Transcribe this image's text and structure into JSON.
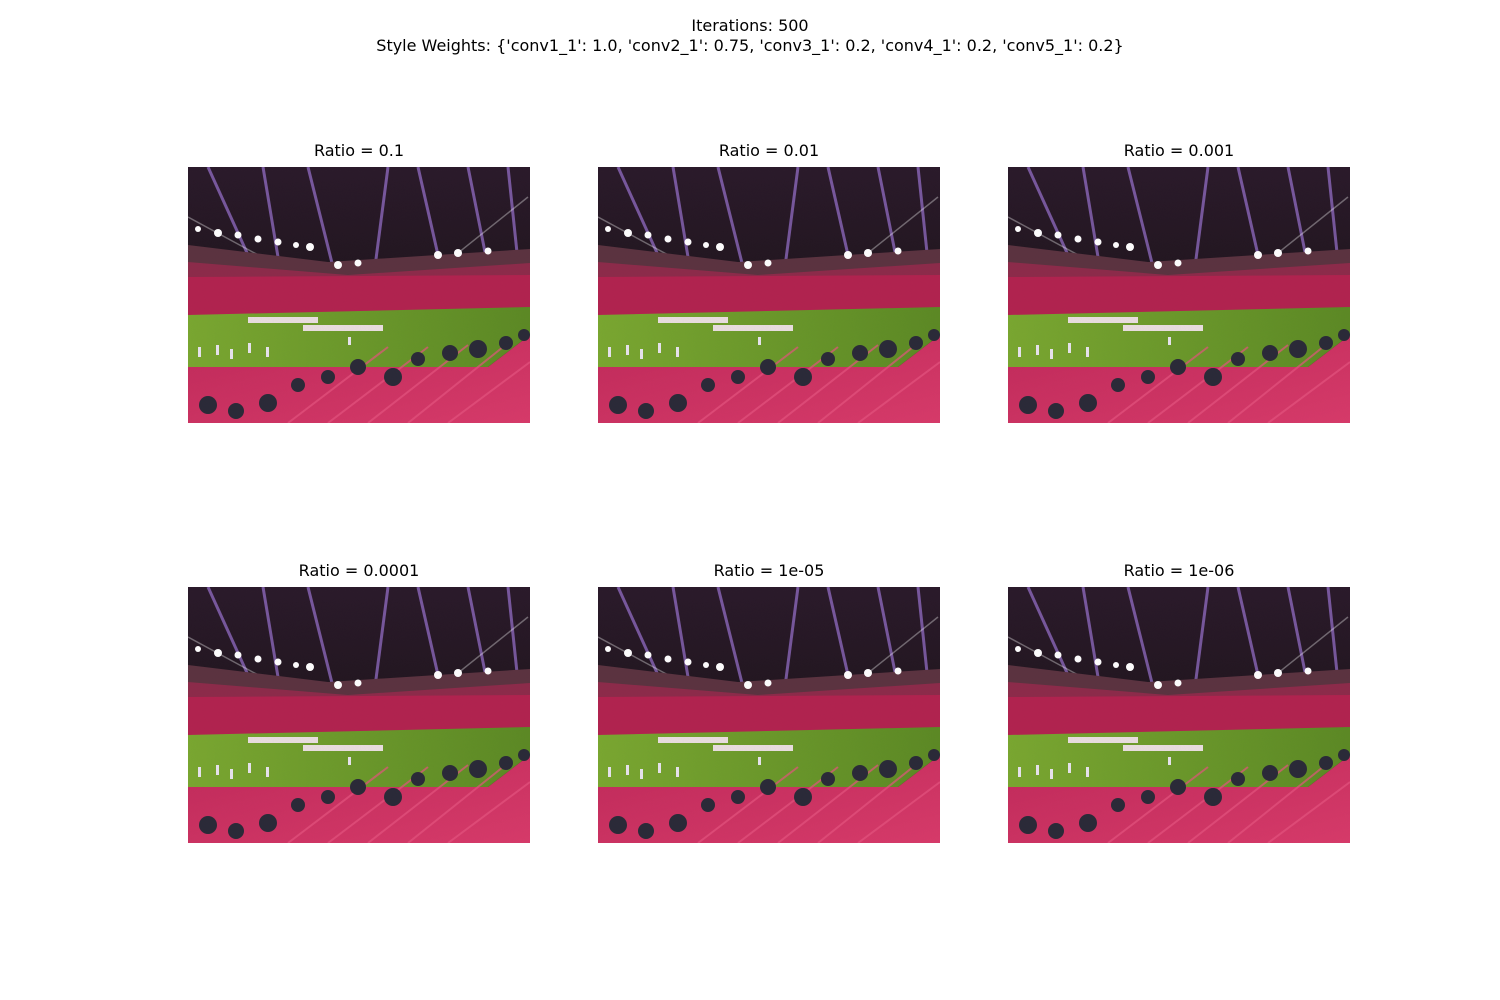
{
  "figure": {
    "title_line1": "Iterations: 500",
    "title_line2": "Style Weights: {'conv1_1': 1.0, 'conv2_1': 0.75, 'conv3_1': 0.2, 'conv4_1': 0.2, 'conv5_1': 0.2}"
  },
  "panels": [
    {
      "title": "Ratio = 0.1"
    },
    {
      "title": "Ratio = 0.01"
    },
    {
      "title": "Ratio = 0.001"
    },
    {
      "title": "Ratio = 0.0001"
    },
    {
      "title": "Ratio = 1e-05"
    },
    {
      "title": "Ratio = 1e-06"
    }
  ],
  "colors": {
    "sky": "#1d1518",
    "stands": "#b2234f",
    "pitch": "#6a9a2a",
    "floodlight": "#ffffff",
    "beam": "#b98cff"
  }
}
